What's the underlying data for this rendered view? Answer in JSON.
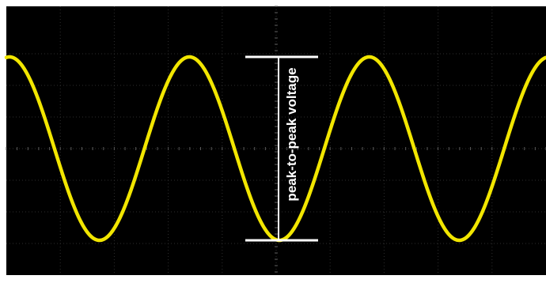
{
  "chart_data": {
    "type": "line",
    "title": "",
    "xlabel": "",
    "ylabel": "",
    "grid": true,
    "x_divisions": 10,
    "y_divisions": 8,
    "series": [
      {
        "waveform": "sine",
        "periods_visible": 3,
        "phase_start": "peak",
        "color": "#f2e600",
        "y_peak_div": 2.9,
        "y_trough_div": -2.9
      }
    ],
    "annotations": [
      {
        "type": "peak-to-peak-marker",
        "text": "peak-to-peak voltage",
        "color": "#ffffff"
      }
    ]
  },
  "colors": {
    "screen_background": "#000000",
    "trace": "#f2e600",
    "grid": "#2e2e2e",
    "annotation": "#ffffff"
  }
}
